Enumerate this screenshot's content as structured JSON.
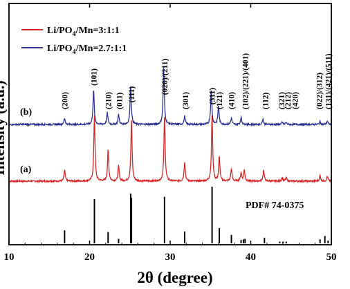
{
  "chart_data": {
    "type": "line",
    "xlabel": "2θ (degree)",
    "ylabel": "Intensity (a.u.)",
    "xlim": [
      10,
      50
    ],
    "xticks": [
      10,
      20,
      30,
      40,
      50
    ],
    "legend": {
      "placement": "top-left",
      "entries": [
        {
          "pre": "Li/PO",
          "sub": "4",
          "post": "/Mn=3:1:1",
          "color": "#d62728"
        },
        {
          "pre": "Li/PO",
          "sub": "4",
          "post": "/Mn=2.7:1:1",
          "color": "#2e3192"
        }
      ]
    },
    "series": [
      {
        "label": "(a)",
        "color": "#d62728",
        "baseline": 262,
        "peaks": [
          [
            16.9,
            16
          ],
          [
            20.6,
            95
          ],
          [
            22.3,
            45
          ],
          [
            23.6,
            22
          ],
          [
            25.2,
            87
          ],
          [
            29.3,
            95
          ],
          [
            31.8,
            28
          ],
          [
            35.2,
            95
          ],
          [
            36.1,
            35
          ],
          [
            37.6,
            18
          ],
          [
            38.8,
            12
          ],
          [
            39.2,
            16
          ],
          [
            41.6,
            16
          ],
          [
            43.9,
            5
          ],
          [
            44.4,
            5
          ],
          [
            48.6,
            8
          ],
          [
            49.5,
            7
          ]
        ]
      },
      {
        "label": "(b)",
        "color": "#2e3192",
        "baseline": 180,
        "peaks": [
          [
            16.9,
            9
          ],
          [
            20.5,
            50
          ],
          [
            22.2,
            17
          ],
          [
            23.6,
            14
          ],
          [
            25.1,
            57
          ],
          [
            29.2,
            82
          ],
          [
            31.8,
            12
          ],
          [
            35.1,
            50
          ],
          [
            36.0,
            27
          ],
          [
            37.6,
            9
          ],
          [
            38.8,
            10
          ],
          [
            41.5,
            8
          ],
          [
            43.9,
            3
          ],
          [
            44.4,
            3
          ],
          [
            48.6,
            4
          ],
          [
            49.5,
            5
          ]
        ]
      }
    ],
    "reference": {
      "label": "PDF# 74-0375",
      "lines": [
        [
          16.9,
          0.23
        ],
        [
          20.6,
          0.78
        ],
        [
          22.3,
          0.2
        ],
        [
          23.6,
          0.08
        ],
        [
          25.1,
          0.88
        ],
        [
          25.2,
          0.8
        ],
        [
          29.3,
          0.82
        ],
        [
          31.8,
          0.21
        ],
        [
          35.2,
          1.0
        ],
        [
          36.1,
          0.27
        ],
        [
          37.6,
          0.15
        ],
        [
          38.8,
          0.06
        ],
        [
          39.1,
          0.07
        ],
        [
          39.3,
          0.08
        ],
        [
          41.7,
          0.1
        ],
        [
          43.6,
          0.03
        ],
        [
          44.0,
          0.03
        ],
        [
          44.4,
          0.03
        ],
        [
          48.6,
          0.07
        ],
        [
          49.2,
          0.13
        ],
        [
          49.6,
          0.05
        ]
      ]
    },
    "annotations": [
      {
        "text": "(200)",
        "x": 16.9
      },
      {
        "text": "(101)",
        "x": 20.5
      },
      {
        "text": "(210)",
        "x": 22.3
      },
      {
        "text": "(011)",
        "x": 23.7
      },
      {
        "text": "(111)",
        "x": 25.2
      },
      {
        "text": "(020)/(211)",
        "x": 29.3
      },
      {
        "text": "(301)",
        "x": 31.9
      },
      {
        "text": "(311)",
        "x": 35.2
      },
      {
        "text": "(121)",
        "x": 36.1
      },
      {
        "text": "(410)",
        "x": 37.6
      },
      {
        "text": "(102)/(221)/(401)",
        "x": 39.3
      },
      {
        "text": "(112)",
        "x": 41.8
      },
      {
        "text": "(321)",
        "x": 43.8
      },
      {
        "text": "(212)",
        "x": 44.6
      },
      {
        "text": "(420)",
        "x": 45.5
      },
      {
        "text": "(022)/(312)",
        "x": 48.5
      },
      {
        "text": "(131)/(421)/(511)",
        "x": 49.6
      }
    ]
  }
}
